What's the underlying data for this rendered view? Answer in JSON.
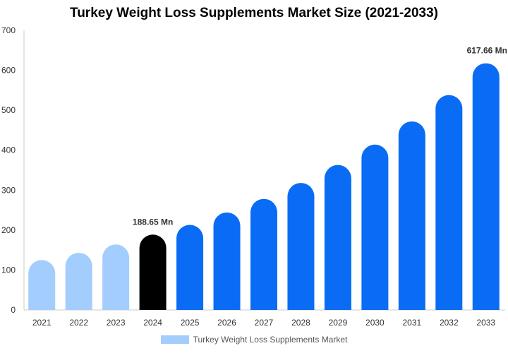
{
  "chart_data": {
    "type": "bar",
    "title": "Turkey Weight Loss Supplements Market Size (2021-2033)",
    "xlabel": "",
    "ylabel": "",
    "categories": [
      "2021",
      "2022",
      "2023",
      "2024",
      "2025",
      "2026",
      "2027",
      "2028",
      "2029",
      "2030",
      "2031",
      "2032",
      "2033"
    ],
    "series": [
      {
        "name": "Turkey Weight Loss Supplements Market",
        "values": [
          125,
          143,
          164,
          188.65,
          213,
          244,
          278,
          318,
          363,
          414,
          472,
          538,
          617.66
        ]
      }
    ],
    "ylim": [
      0,
      700
    ],
    "yticks": [
      0,
      100,
      200,
      300,
      400,
      500,
      600,
      700
    ],
    "grid": false,
    "legend_position": "bottom-center",
    "data_labels": [
      {
        "category": "2024",
        "text": "188.65 Mn"
      },
      {
        "category": "2033",
        "text": "617.66 Mn"
      }
    ],
    "colors": {
      "historical": "#a3cdfd",
      "base_year": "#000000",
      "forecast": "#0a6cf5",
      "axis": "#cccccc",
      "legend_swatch": "#a3cdfd"
    },
    "bar_color_roles": [
      "historical",
      "historical",
      "historical",
      "base_year",
      "forecast",
      "forecast",
      "forecast",
      "forecast",
      "forecast",
      "forecast",
      "forecast",
      "forecast",
      "forecast"
    ]
  }
}
